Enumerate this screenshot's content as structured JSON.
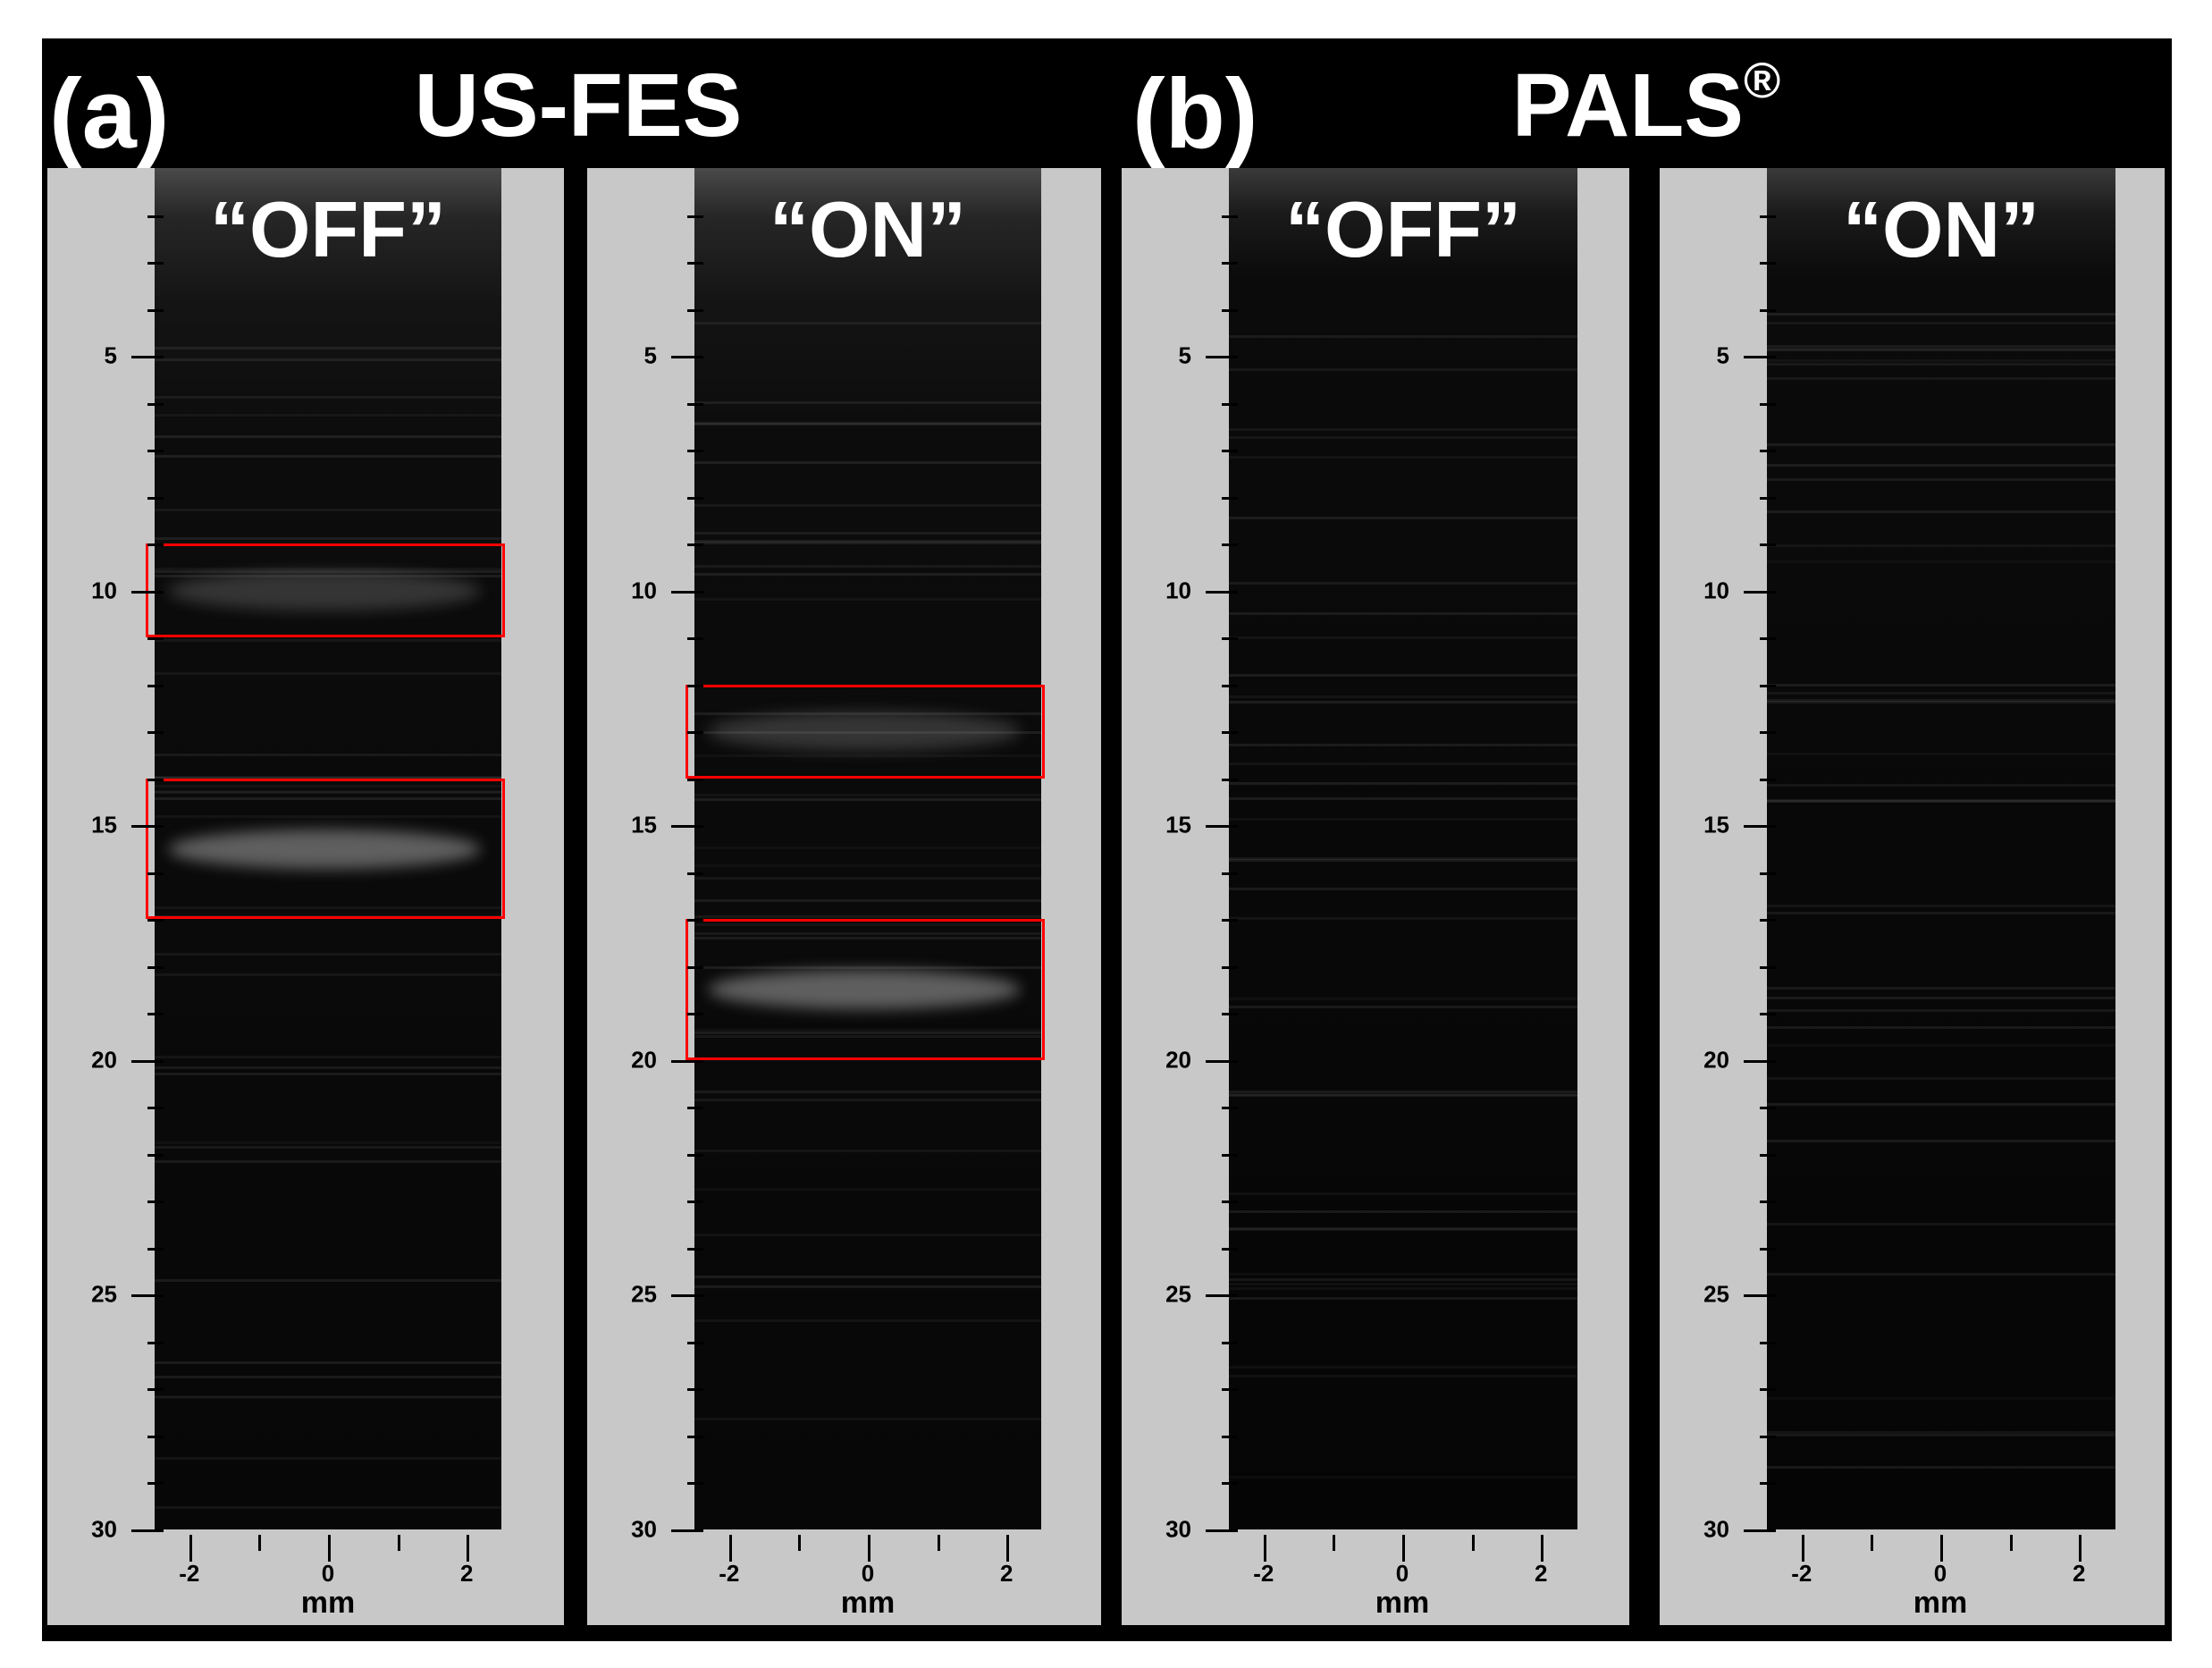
{
  "figure": {
    "panels": [
      {
        "label": "(a)",
        "title": "US-FES",
        "title_suffix": ""
      },
      {
        "label": "(b)",
        "title": "PALS",
        "title_suffix": "®"
      }
    ],
    "subpanels": [
      {
        "state": "“OFF”",
        "group": "US-FES",
        "regions_of_interest_mm": [
          [
            9.0,
            11.0
          ],
          [
            14.0,
            17.0
          ]
        ]
      },
      {
        "state": "“ON”",
        "group": "US-FES",
        "regions_of_interest_mm": [
          [
            12.0,
            14.0
          ],
          [
            17.0,
            20.0
          ]
        ]
      },
      {
        "state": "“OFF”",
        "group": "PALS",
        "regions_of_interest_mm": []
      },
      {
        "state": "“ON”",
        "group": "PALS",
        "regions_of_interest_mm": []
      }
    ],
    "depth_axis": {
      "ticks": [
        "5",
        "10",
        "15",
        "20",
        "25",
        "30"
      ],
      "range_mm": [
        1,
        30
      ]
    },
    "lateral_axis": {
      "ticks": [
        "-2",
        "0",
        "2"
      ],
      "unit": "mm",
      "range_mm": [
        -2.5,
        2.5
      ]
    },
    "colors": {
      "background": "#000000",
      "axis_panel": "#c8c8c8",
      "roi_box": "#ff0000"
    }
  }
}
